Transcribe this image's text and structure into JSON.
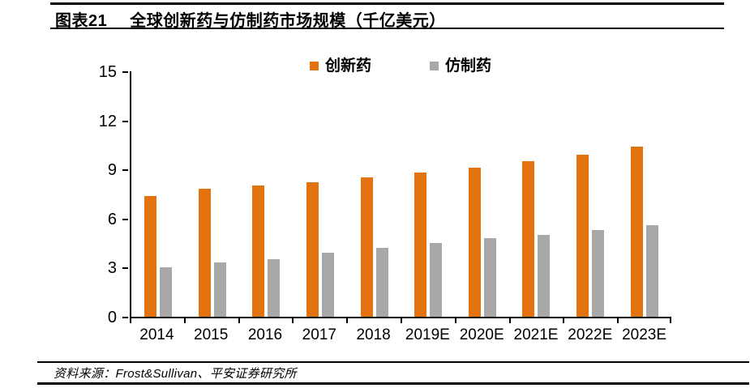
{
  "header": {
    "figure_label": "图表21",
    "title": "全球创新药与仿制药市场规模（千亿美元）"
  },
  "footer": {
    "source": "资料来源：Frost&Sullivan、平安证券研究所"
  },
  "colors": {
    "innovative": "#E4720F",
    "generic": "#A8A8A8",
    "axis": "#000000"
  },
  "chart_data": {
    "type": "bar",
    "title": "全球创新药与仿制药市场规模（千亿美元）",
    "unit": "千亿美元",
    "categories": [
      "2014",
      "2015",
      "2016",
      "2017",
      "2018",
      "2019E",
      "2020E",
      "2021E",
      "2022E",
      "2023E"
    ],
    "series": [
      {
        "name": "创新药",
        "key": "innovative-drugs",
        "color": "#E4720F",
        "values": [
          7.4,
          7.8,
          8.0,
          8.2,
          8.5,
          8.8,
          9.1,
          9.5,
          9.9,
          10.4
        ]
      },
      {
        "name": "仿制药",
        "key": "generic-drugs",
        "color": "#A8A8A8",
        "values": [
          3.0,
          3.3,
          3.5,
          3.9,
          4.2,
          4.5,
          4.8,
          5.0,
          5.3,
          5.6
        ]
      }
    ],
    "ylim": [
      0,
      15
    ],
    "yticks": [
      0,
      3,
      6,
      9,
      12,
      15
    ],
    "grid": false,
    "legend_position": "top-center"
  }
}
